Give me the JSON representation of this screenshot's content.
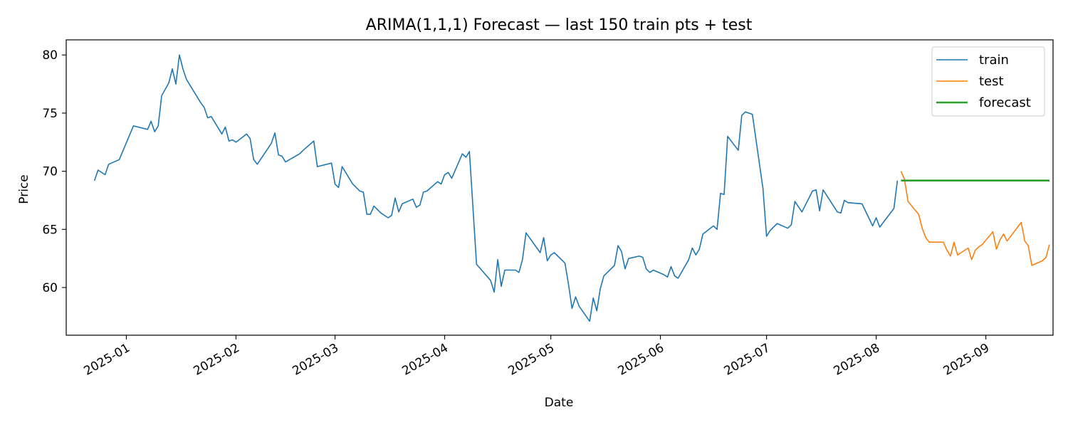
{
  "chart_data": {
    "type": "line",
    "title": "ARIMA(1,1,1) Forecast — last 150 train pts + test",
    "xlabel": "Date",
    "ylabel": "Price",
    "xlim": [
      "2024-12-15",
      "2025-09-20"
    ],
    "ylim": [
      55.9,
      81.3
    ],
    "x_ticks": [
      {
        "date": "2025-01-01",
        "label": "2025-01"
      },
      {
        "date": "2025-02-01",
        "label": "2025-02"
      },
      {
        "date": "2025-03-01",
        "label": "2025-03"
      },
      {
        "date": "2025-04-01",
        "label": "2025-04"
      },
      {
        "date": "2025-05-01",
        "label": "2025-05"
      },
      {
        "date": "2025-06-01",
        "label": "2025-06"
      },
      {
        "date": "2025-07-01",
        "label": "2025-07"
      },
      {
        "date": "2025-08-01",
        "label": "2025-08"
      },
      {
        "date": "2025-09-01",
        "label": "2025-09"
      }
    ],
    "y_ticks": [
      60,
      65,
      70,
      75,
      80
    ],
    "grid": false,
    "legend_position": "top-right",
    "series": [
      {
        "name": "train",
        "color": "#1f77b4",
        "points": [
          [
            "2024-12-23",
            69.2
          ],
          [
            "2024-12-24",
            70.1
          ],
          [
            "2024-12-26",
            69.7
          ],
          [
            "2024-12-27",
            70.6
          ],
          [
            "2024-12-30",
            71.0
          ],
          [
            "2025-01-03",
            73.9
          ],
          [
            "2025-01-07",
            73.6
          ],
          [
            "2025-01-08",
            74.3
          ],
          [
            "2025-01-09",
            73.4
          ],
          [
            "2025-01-10",
            73.9
          ],
          [
            "2025-01-11",
            76.5
          ],
          [
            "2025-01-13",
            77.6
          ],
          [
            "2025-01-14",
            78.8
          ],
          [
            "2025-01-15",
            77.5
          ],
          [
            "2025-01-16",
            80.0
          ],
          [
            "2025-01-17",
            78.8
          ],
          [
            "2025-01-18",
            77.9
          ],
          [
            "2025-01-22",
            75.9
          ],
          [
            "2025-01-23",
            75.5
          ],
          [
            "2025-01-24",
            74.6
          ],
          [
            "2025-01-25",
            74.7
          ],
          [
            "2025-01-28",
            73.2
          ],
          [
            "2025-01-29",
            73.8
          ],
          [
            "2025-01-30",
            72.6
          ],
          [
            "2025-01-31",
            72.7
          ],
          [
            "2025-02-01",
            72.5
          ],
          [
            "2025-02-04",
            73.2
          ],
          [
            "2025-02-05",
            72.8
          ],
          [
            "2025-02-06",
            71.0
          ],
          [
            "2025-02-07",
            70.6
          ],
          [
            "2025-02-11",
            72.4
          ],
          [
            "2025-02-12",
            73.3
          ],
          [
            "2025-02-13",
            71.4
          ],
          [
            "2025-02-14",
            71.3
          ],
          [
            "2025-02-15",
            70.8
          ],
          [
            "2025-02-19",
            71.5
          ],
          [
            "2025-02-20",
            71.8
          ],
          [
            "2025-02-23",
            72.6
          ],
          [
            "2025-02-24",
            70.4
          ],
          [
            "2025-02-28",
            70.7
          ],
          [
            "2025-03-01",
            68.9
          ],
          [
            "2025-03-02",
            68.6
          ],
          [
            "2025-03-03",
            70.4
          ],
          [
            "2025-03-06",
            68.9
          ],
          [
            "2025-03-08",
            68.3
          ],
          [
            "2025-03-09",
            68.2
          ],
          [
            "2025-03-10",
            66.3
          ],
          [
            "2025-03-11",
            66.3
          ],
          [
            "2025-03-12",
            67.0
          ],
          [
            "2025-03-14",
            66.4
          ],
          [
            "2025-03-16",
            66.0
          ],
          [
            "2025-03-17",
            66.2
          ],
          [
            "2025-03-18",
            67.7
          ],
          [
            "2025-03-19",
            66.5
          ],
          [
            "2025-03-20",
            67.2
          ],
          [
            "2025-03-23",
            67.6
          ],
          [
            "2025-03-24",
            66.9
          ],
          [
            "2025-03-25",
            67.1
          ],
          [
            "2025-03-26",
            68.2
          ],
          [
            "2025-03-27",
            68.3
          ],
          [
            "2025-03-30",
            69.1
          ],
          [
            "2025-03-31",
            68.9
          ],
          [
            "2025-04-01",
            69.7
          ],
          [
            "2025-04-02",
            69.9
          ],
          [
            "2025-04-03",
            69.4
          ],
          [
            "2025-04-06",
            71.5
          ],
          [
            "2025-04-07",
            71.2
          ],
          [
            "2025-04-08",
            71.7
          ],
          [
            "2025-04-10",
            62.0
          ],
          [
            "2025-04-14",
            60.6
          ],
          [
            "2025-04-15",
            59.6
          ],
          [
            "2025-04-16",
            62.4
          ],
          [
            "2025-04-17",
            60.1
          ],
          [
            "2025-04-18",
            61.5
          ],
          [
            "2025-04-21",
            61.5
          ],
          [
            "2025-04-22",
            61.3
          ],
          [
            "2025-04-23",
            62.4
          ],
          [
            "2025-04-24",
            64.7
          ],
          [
            "2025-04-28",
            63.0
          ],
          [
            "2025-04-29",
            64.3
          ],
          [
            "2025-04-30",
            62.3
          ],
          [
            "2025-05-01",
            62.8
          ],
          [
            "2025-05-02",
            63.0
          ],
          [
            "2025-05-05",
            62.1
          ],
          [
            "2025-05-06",
            60.3
          ],
          [
            "2025-05-07",
            58.2
          ],
          [
            "2025-05-08",
            59.2
          ],
          [
            "2025-05-09",
            58.4
          ],
          [
            "2025-05-12",
            57.1
          ],
          [
            "2025-05-13",
            59.1
          ],
          [
            "2025-05-14",
            58.0
          ],
          [
            "2025-05-15",
            59.9
          ],
          [
            "2025-05-16",
            61.0
          ],
          [
            "2025-05-19",
            61.9
          ],
          [
            "2025-05-20",
            63.6
          ],
          [
            "2025-05-21",
            63.1
          ],
          [
            "2025-05-22",
            61.6
          ],
          [
            "2025-05-23",
            62.5
          ],
          [
            "2025-05-26",
            62.7
          ],
          [
            "2025-05-27",
            62.6
          ],
          [
            "2025-05-28",
            61.6
          ],
          [
            "2025-05-29",
            61.3
          ],
          [
            "2025-05-30",
            61.5
          ],
          [
            "2025-06-02",
            61.1
          ],
          [
            "2025-06-03",
            60.9
          ],
          [
            "2025-06-04",
            61.8
          ],
          [
            "2025-06-05",
            61.0
          ],
          [
            "2025-06-06",
            60.8
          ],
          [
            "2025-06-09",
            62.4
          ],
          [
            "2025-06-10",
            63.4
          ],
          [
            "2025-06-11",
            62.8
          ],
          [
            "2025-06-12",
            63.3
          ],
          [
            "2025-06-13",
            64.6
          ],
          [
            "2025-06-16",
            65.3
          ],
          [
            "2025-06-17",
            65.0
          ],
          [
            "2025-06-18",
            68.1
          ],
          [
            "2025-06-19",
            68.0
          ],
          [
            "2025-06-20",
            73.0
          ],
          [
            "2025-06-23",
            71.8
          ],
          [
            "2025-06-24",
            74.8
          ],
          [
            "2025-06-25",
            75.1
          ],
          [
            "2025-06-27",
            74.9
          ],
          [
            "2025-06-30",
            68.5
          ],
          [
            "2025-07-01",
            64.4
          ],
          [
            "2025-07-02",
            64.9
          ],
          [
            "2025-07-04",
            65.5
          ],
          [
            "2025-07-07",
            65.1
          ],
          [
            "2025-07-08",
            65.4
          ],
          [
            "2025-07-09",
            67.4
          ],
          [
            "2025-07-11",
            66.5
          ],
          [
            "2025-07-14",
            68.3
          ],
          [
            "2025-07-15",
            68.4
          ],
          [
            "2025-07-16",
            66.6
          ],
          [
            "2025-07-17",
            68.4
          ],
          [
            "2025-07-21",
            66.5
          ],
          [
            "2025-07-22",
            66.4
          ],
          [
            "2025-07-23",
            67.5
          ],
          [
            "2025-07-24",
            67.3
          ],
          [
            "2025-07-28",
            67.2
          ],
          [
            "2025-07-31",
            65.3
          ],
          [
            "2025-08-01",
            66.0
          ],
          [
            "2025-08-02",
            65.2
          ],
          [
            "2025-08-06",
            66.8
          ],
          [
            "2025-08-07",
            69.2
          ]
        ]
      },
      {
        "name": "test",
        "color": "#ff7f0e",
        "points": [
          [
            "2025-08-08",
            70.0
          ],
          [
            "2025-08-09",
            69.3
          ],
          [
            "2025-08-10",
            67.4
          ],
          [
            "2025-08-13",
            66.3
          ],
          [
            "2025-08-14",
            65.1
          ],
          [
            "2025-08-15",
            64.3
          ],
          [
            "2025-08-16",
            63.9
          ],
          [
            "2025-08-20",
            63.9
          ],
          [
            "2025-08-21",
            63.2
          ],
          [
            "2025-08-22",
            62.7
          ],
          [
            "2025-08-23",
            63.9
          ],
          [
            "2025-08-24",
            62.8
          ],
          [
            "2025-08-27",
            63.4
          ],
          [
            "2025-08-28",
            62.4
          ],
          [
            "2025-08-29",
            63.2
          ],
          [
            "2025-08-30",
            63.5
          ],
          [
            "2025-08-31",
            63.7
          ],
          [
            "2025-09-03",
            64.8
          ],
          [
            "2025-09-04",
            63.3
          ],
          [
            "2025-09-05",
            64.1
          ],
          [
            "2025-09-06",
            64.6
          ],
          [
            "2025-09-07",
            64.0
          ],
          [
            "2025-09-11",
            65.6
          ],
          [
            "2025-09-12",
            64.0
          ],
          [
            "2025-09-13",
            63.6
          ],
          [
            "2025-09-14",
            61.9
          ],
          [
            "2025-09-17",
            62.3
          ],
          [
            "2025-09-18",
            62.6
          ],
          [
            "2025-09-19",
            63.7
          ]
        ]
      },
      {
        "name": "forecast",
        "color": "#2ca02c",
        "points": [
          [
            "2025-08-08",
            69.2
          ],
          [
            "2025-09-19",
            69.2
          ]
        ]
      }
    ]
  }
}
